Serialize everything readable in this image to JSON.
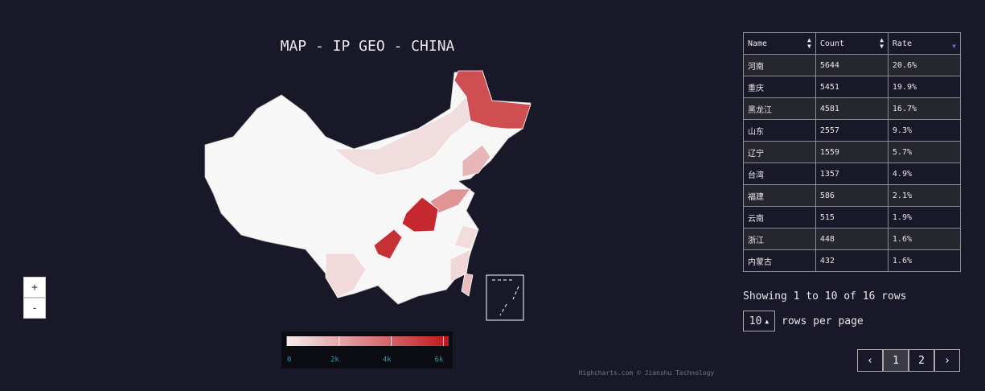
{
  "title": "MAP - IP GEO - CHINA",
  "color_axis": {
    "range": [
      0,
      6200
    ],
    "min_color": "#f6ecec",
    "max_color": "#c0161c",
    "ticks": [
      0,
      {
        "value": 2000,
        "label": "2k"
      },
      {
        "value": 4000,
        "label": "4k"
      },
      {
        "value": 6000,
        "label": "6k"
      }
    ]
  },
  "zoom": [
    "+",
    "-"
  ],
  "credits": "Highcharts.com © Jianshu Technology",
  "table": {
    "columns": [
      "Name",
      "Count",
      "Rate"
    ],
    "sort_column": 2,
    "rows": [
      [
        "河南",
        5644,
        "20.6%"
      ],
      [
        "重庆",
        5451,
        "19.9%"
      ],
      [
        "黑龙江",
        4581,
        "16.7%"
      ],
      [
        "山东",
        2557,
        "9.3%"
      ],
      [
        "辽宁",
        1559,
        "5.7%"
      ],
      [
        "台湾",
        1357,
        "4.9%"
      ],
      [
        "福建",
        586,
        "2.1%"
      ],
      [
        "云南",
        515,
        "1.9%"
      ],
      [
        "浙江",
        448,
        "1.6%"
      ],
      [
        "内蒙古",
        432,
        "1.6%"
      ]
    ]
  },
  "pagination": {
    "summary": "Showing 1 to 10 of 16 rows",
    "page_size": "10",
    "page_size_label": "rows per page",
    "buttons": [
      "‹",
      "1",
      "2",
      "›"
    ],
    "active": 1
  }
}
